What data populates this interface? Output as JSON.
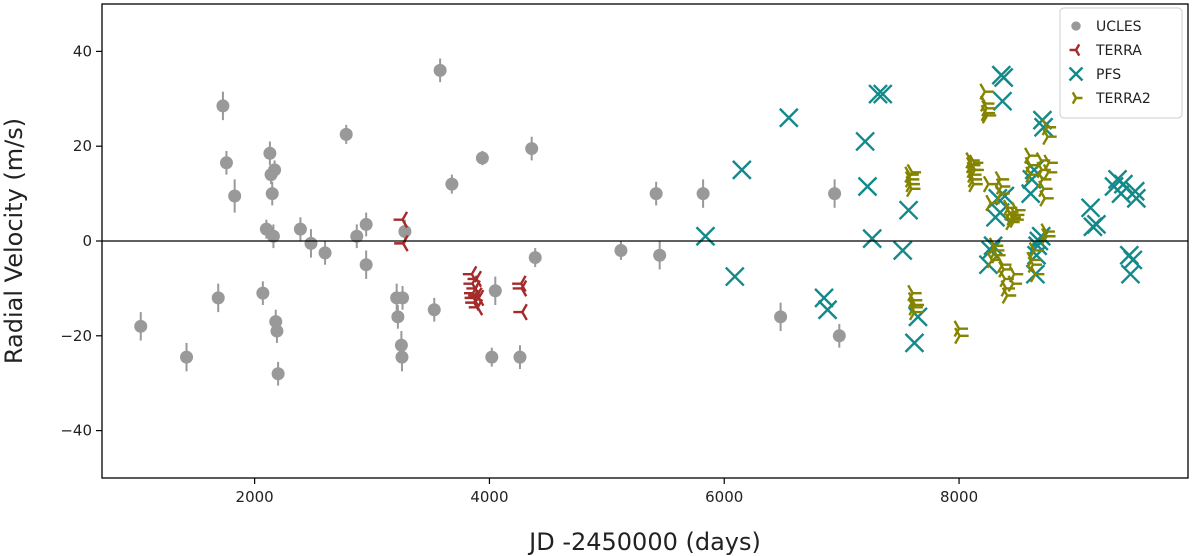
{
  "chart_data": {
    "type": "scatter",
    "title": "",
    "xlabel": "JD -2450000 (days)",
    "ylabel": "Radial Velocity (m/s)",
    "xlim": [
      700,
      9950
    ],
    "ylim": [
      -50,
      50
    ],
    "xticks": [
      2000,
      4000,
      6000,
      8000
    ],
    "yticks": [
      -40,
      -20,
      0,
      20,
      40
    ],
    "reference_line_y": 0,
    "grid": false,
    "legend_position": "top-right",
    "series": [
      {
        "name": "UCLES",
        "marker": "circle-errorbar",
        "color": "#999999",
        "points": [
          [
            1030,
            -18,
            3
          ],
          [
            1420,
            -24.5,
            3
          ],
          [
            1690,
            -12,
            3
          ],
          [
            1730,
            28.5,
            3
          ],
          [
            1760,
            16.5,
            2.5
          ],
          [
            1830,
            9.5,
            3.5
          ],
          [
            2070,
            -11,
            2.5
          ],
          [
            2100,
            2.5,
            2
          ],
          [
            2130,
            18.5,
            2.5
          ],
          [
            2140,
            14,
            2
          ],
          [
            2150,
            10,
            2.5
          ],
          [
            2160,
            1,
            2.5
          ],
          [
            2170,
            15,
            2
          ],
          [
            2180,
            -17,
            2.5
          ],
          [
            2190,
            -19,
            2.5
          ],
          [
            2200,
            -28,
            2.5
          ],
          [
            2390,
            2.5,
            2.5
          ],
          [
            2480,
            -0.5,
            3
          ],
          [
            2600,
            -2.5,
            2.5
          ],
          [
            2780,
            22.5,
            2
          ],
          [
            2870,
            1,
            2.5
          ],
          [
            2950,
            3.5,
            2.5
          ],
          [
            2950,
            -5,
            3
          ],
          [
            3210,
            -12,
            3
          ],
          [
            3220,
            -16,
            2.5
          ],
          [
            3250,
            -22,
            3
          ],
          [
            3255,
            -24.5,
            3
          ],
          [
            3260,
            -12,
            2.5
          ],
          [
            3280,
            2,
            2.5
          ],
          [
            3530,
            -14.5,
            2.5
          ],
          [
            3580,
            36,
            2.5
          ],
          [
            3680,
            12,
            2
          ],
          [
            3940,
            17.5,
            1.5
          ],
          [
            4020,
            -24.5,
            2
          ],
          [
            4050,
            -10.5,
            3
          ],
          [
            4260,
            -24.5,
            2.5
          ],
          [
            4360,
            19.5,
            2.5
          ],
          [
            4390,
            -3.5,
            2
          ],
          [
            5120,
            -2,
            2
          ],
          [
            5420,
            10,
            2.5
          ],
          [
            5450,
            -3,
            3
          ],
          [
            5820,
            10,
            3
          ],
          [
            6480,
            -16,
            3
          ],
          [
            6940,
            10,
            3
          ],
          [
            6980,
            -20,
            2.5
          ]
        ]
      },
      {
        "name": "TERRA",
        "marker": "tri-left",
        "color": "#a52a2a",
        "points": [
          [
            3260,
            4.5
          ],
          [
            3265,
            -0.5
          ],
          [
            3850,
            -7
          ],
          [
            3855,
            -9
          ],
          [
            3860,
            -11
          ],
          [
            3865,
            -12
          ],
          [
            3870,
            -13
          ],
          [
            3880,
            -10
          ],
          [
            3890,
            -8
          ],
          [
            3895,
            -11.5
          ],
          [
            3900,
            -14
          ],
          [
            3910,
            -12
          ],
          [
            4270,
            -9
          ],
          [
            4275,
            -10
          ],
          [
            4280,
            -15
          ]
        ]
      },
      {
        "name": "PFS",
        "marker": "x",
        "color": "#138a8a",
        "points": [
          [
            5840,
            1
          ],
          [
            6090,
            -7.5
          ],
          [
            6150,
            15
          ],
          [
            6550,
            26
          ],
          [
            6850,
            -12
          ],
          [
            6880,
            -14.5
          ],
          [
            7200,
            21
          ],
          [
            7220,
            11.5
          ],
          [
            7260,
            0.5
          ],
          [
            7310,
            31
          ],
          [
            7350,
            31
          ],
          [
            7520,
            -2
          ],
          [
            7570,
            6.5
          ],
          [
            7620,
            -21.5
          ],
          [
            7650,
            -16
          ],
          [
            8250,
            -5
          ],
          [
            8270,
            -2
          ],
          [
            8290,
            -1
          ],
          [
            8310,
            5
          ],
          [
            8330,
            9
          ],
          [
            8350,
            6
          ],
          [
            8360,
            35
          ],
          [
            8370,
            29.5
          ],
          [
            8380,
            34.5
          ],
          [
            8390,
            9.5
          ],
          [
            8610,
            10
          ],
          [
            8620,
            13
          ],
          [
            8640,
            15
          ],
          [
            8650,
            -7
          ],
          [
            8660,
            -3
          ],
          [
            8670,
            -1
          ],
          [
            8680,
            0
          ],
          [
            8700,
            1
          ],
          [
            8710,
            25.5
          ],
          [
            8720,
            24
          ],
          [
            9120,
            7
          ],
          [
            9140,
            3
          ],
          [
            9170,
            3.5
          ],
          [
            9320,
            11.5
          ],
          [
            9350,
            13
          ],
          [
            9380,
            10
          ],
          [
            9400,
            12
          ],
          [
            9450,
            -3
          ],
          [
            9460,
            -7
          ],
          [
            9480,
            -4
          ],
          [
            9500,
            10.5
          ],
          [
            9510,
            9
          ]
        ]
      },
      {
        "name": "TERRA2",
        "marker": "tri-right",
        "color": "#848400",
        "points": [
          [
            7580,
            14
          ],
          [
            7585,
            13
          ],
          [
            7590,
            12
          ],
          [
            7595,
            11
          ],
          [
            7600,
            14.5
          ],
          [
            7605,
            -11
          ],
          [
            7610,
            -12.5
          ],
          [
            7615,
            -14
          ],
          [
            7620,
            -15
          ],
          [
            7625,
            -13.5
          ],
          [
            8000,
            -18.5
          ],
          [
            8005,
            -20
          ],
          [
            8100,
            17
          ],
          [
            8105,
            16
          ],
          [
            8110,
            15
          ],
          [
            8115,
            14
          ],
          [
            8120,
            13
          ],
          [
            8125,
            12
          ],
          [
            8130,
            16.5
          ],
          [
            8135,
            15
          ],
          [
            8220,
            31.5
          ],
          [
            8225,
            29
          ],
          [
            8230,
            27
          ],
          [
            8235,
            28
          ],
          [
            8240,
            26.5
          ],
          [
            8250,
            12
          ],
          [
            8270,
            8
          ],
          [
            8280,
            -4
          ],
          [
            8300,
            -1
          ],
          [
            8310,
            -2
          ],
          [
            8320,
            -3
          ],
          [
            8350,
            13
          ],
          [
            8355,
            10
          ],
          [
            8360,
            11.5
          ],
          [
            8370,
            -5
          ],
          [
            8380,
            -6
          ],
          [
            8390,
            -8
          ],
          [
            8400,
            -10
          ],
          [
            8410,
            -11.5
          ],
          [
            8420,
            7
          ],
          [
            8430,
            6
          ],
          [
            8440,
            4
          ],
          [
            8450,
            5
          ],
          [
            8460,
            -9
          ],
          [
            8470,
            -7
          ],
          [
            8475,
            4.5
          ],
          [
            8480,
            5.5
          ],
          [
            8490,
            6.5
          ],
          [
            8600,
            18
          ],
          [
            8605,
            16
          ],
          [
            8610,
            14
          ],
          [
            8620,
            -4
          ],
          [
            8630,
            -5
          ],
          [
            8640,
            -2
          ],
          [
            8650,
            -7
          ],
          [
            8700,
            17
          ],
          [
            8705,
            15
          ],
          [
            8710,
            13
          ],
          [
            8720,
            11
          ],
          [
            8730,
            9
          ],
          [
            8740,
            2
          ],
          [
            8745,
            1
          ],
          [
            8750,
            24
          ],
          [
            8755,
            22
          ],
          [
            8760,
            14.5
          ],
          [
            8765,
            16.5
          ]
        ]
      }
    ]
  }
}
